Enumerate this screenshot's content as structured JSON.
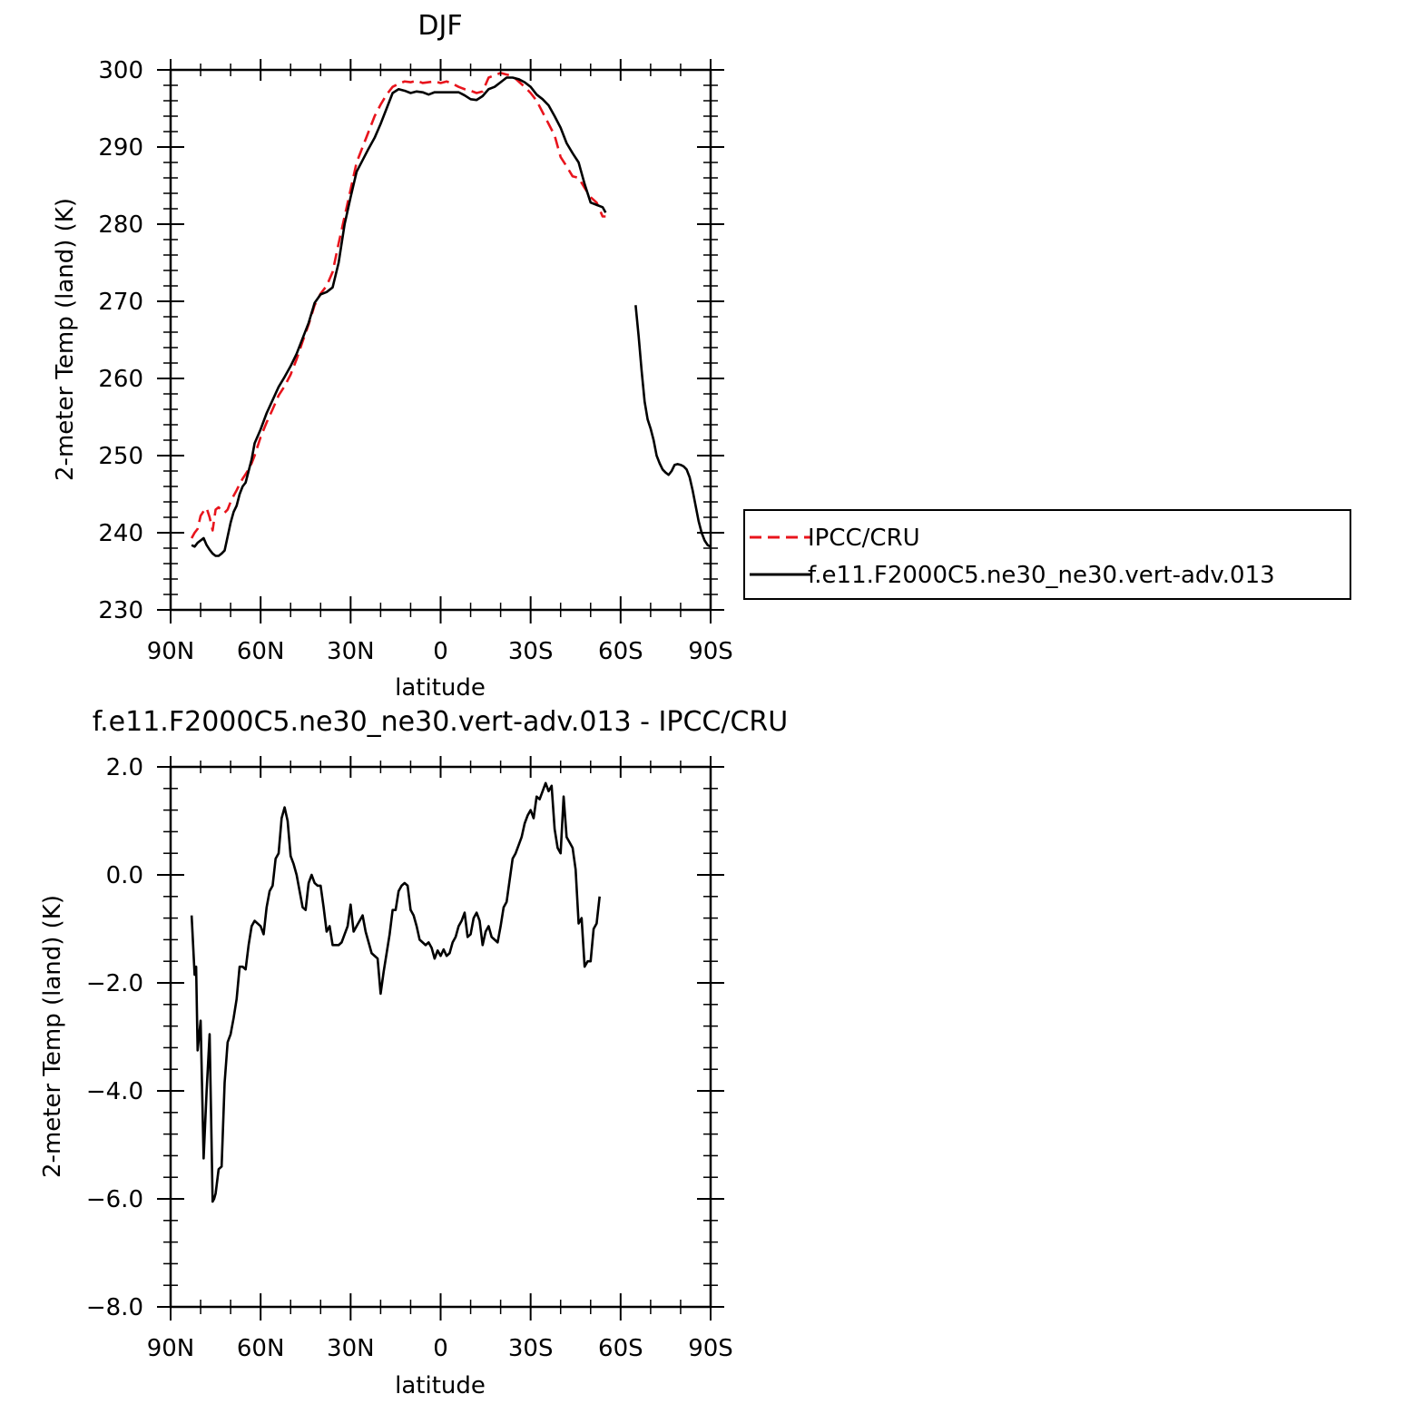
{
  "chart_data": [
    {
      "type": "line",
      "title": "DJF",
      "xlabel": "latitude",
      "ylabel": "2-meter Temp (land) (K)",
      "xticks": [
        "90N",
        "60N",
        "30N",
        "0",
        "30S",
        "60S",
        "90S"
      ],
      "xlim": [
        -90,
        90
      ],
      "yticks": [
        "230",
        "240",
        "250",
        "260",
        "270",
        "280",
        "290",
        "300"
      ],
      "ylim": [
        230,
        300
      ],
      "grid": false,
      "legend": {
        "placement": "right",
        "entries": [
          "IPCC/CRU",
          "f.e11.F2000C5.ne30_ne30.vert-adv.013"
        ]
      },
      "series": [
        {
          "name": "IPCC/CRU",
          "style": "dashed",
          "color": "#e8141c",
          "x": [
            -83,
            -82,
            -81,
            -80,
            -79,
            -78,
            -77,
            -76,
            -75,
            -74,
            -73,
            -72,
            -71,
            -70,
            -69,
            -68,
            -67,
            -66,
            -65,
            -64,
            -63,
            -62,
            -60,
            -58,
            -56,
            -54,
            -52,
            -50,
            -48,
            -46,
            -44,
            -42,
            -40,
            -38,
            -36,
            -34,
            -32,
            -30,
            -28,
            -26,
            -24,
            -22,
            -20,
            -18,
            -16,
            -14,
            -12,
            -10,
            -8,
            -6,
            -4,
            -2,
            0,
            2,
            4,
            6,
            8,
            10,
            12,
            14,
            16,
            18,
            20,
            22,
            24,
            26,
            28,
            30,
            32,
            34,
            36,
            38,
            40,
            42,
            44,
            46,
            48,
            50,
            52,
            54,
            55
          ],
          "y": [
            239.3,
            240.0,
            240.5,
            242.2,
            242.8,
            243.2,
            242.0,
            240.3,
            243.0,
            243.3,
            242.8,
            242.6,
            243.0,
            244.0,
            244.8,
            245.5,
            246.3,
            247.0,
            247.6,
            248.2,
            249.0,
            250.0,
            252.4,
            254.3,
            256.0,
            257.8,
            259.0,
            260.5,
            262.5,
            264.8,
            267.0,
            269.5,
            271.0,
            272.0,
            273.8,
            277.5,
            281.0,
            284.5,
            288.0,
            290.0,
            292.0,
            294.0,
            295.5,
            296.8,
            297.8,
            298.2,
            298.5,
            298.4,
            298.6,
            298.3,
            298.4,
            298.5,
            298.3,
            298.5,
            298.2,
            297.8,
            297.5,
            297.3,
            297.0,
            297.2,
            299.0,
            299.3,
            299.6,
            299.4,
            299.2,
            298.5,
            297.8,
            297.0,
            296.0,
            294.5,
            293.0,
            291.5,
            288.7,
            287.5,
            286.2,
            286.0,
            284.7,
            283.5,
            282.8,
            281.0,
            281.0
          ]
        },
        {
          "name": "f.e11.F2000C5.ne30_ne30.vert-adv.013",
          "style": "solid",
          "color": "#000000",
          "segments": [
            {
              "x": [
                -83,
                -82,
                -81,
                -80,
                -79,
                -78,
                -77,
                -76,
                -75,
                -74,
                -73,
                -72,
                -71,
                -70,
                -69,
                -68,
                -67,
                -66,
                -65,
                -64,
                -63,
                -62,
                -60,
                -58,
                -56,
                -54,
                -52,
                -50,
                -48,
                -46,
                -44,
                -42,
                -40,
                -38,
                -36,
                -34,
                -32,
                -30,
                -28,
                -26,
                -24,
                -22,
                -20,
                -18,
                -16,
                -14,
                -12,
                -10,
                -8,
                -6,
                -4,
                -2,
                0,
                2,
                4,
                6,
                8,
                10,
                12,
                14,
                16,
                18,
                20,
                22,
                24,
                26,
                28,
                30,
                32,
                34,
                36,
                38,
                40,
                42,
                44,
                46,
                48,
                50,
                52,
                54,
                55
              ],
              "y": [
                238.4,
                238.2,
                238.7,
                239.0,
                239.3,
                238.4,
                237.8,
                237.3,
                237.0,
                237.0,
                237.3,
                237.7,
                239.5,
                241.3,
                242.7,
                243.5,
                245.0,
                246.0,
                246.5,
                248.0,
                249.5,
                251.6,
                253.4,
                255.5,
                257.2,
                258.9,
                260.2,
                261.6,
                263.2,
                265.2,
                267.2,
                269.8,
                270.9,
                271.2,
                271.8,
                275.0,
                280.0,
                283.5,
                286.8,
                288.3,
                289.8,
                291.2,
                293.0,
                295.0,
                297.0,
                297.5,
                297.3,
                297.0,
                297.2,
                297.1,
                296.8,
                297.1,
                297.1,
                297.1,
                297.1,
                297.1,
                296.7,
                296.2,
                296.1,
                296.6,
                297.5,
                297.8,
                298.4,
                299.0,
                299.0,
                298.8,
                298.4,
                297.8,
                296.8,
                296.2,
                295.4,
                294.0,
                292.5,
                290.5,
                289.2,
                288.0,
                285.2,
                282.8,
                282.5,
                282.2,
                281.5
              ]
            },
            {
              "x": [
                65,
                66,
                67,
                68,
                69,
                70,
                71,
                72,
                73,
                74,
                75,
                76,
                77,
                78,
                79,
                80,
                81,
                82,
                83,
                84,
                85,
                86,
                87,
                88,
                89,
                90
              ],
              "y": [
                269.5,
                265.5,
                261.0,
                257.0,
                254.7,
                253.5,
                252.0,
                250.0,
                249.0,
                248.2,
                247.8,
                247.5,
                248.0,
                248.8,
                248.9,
                248.8,
                248.6,
                248.2,
                247.2,
                245.5,
                243.5,
                241.5,
                240.0,
                239.0,
                238.4,
                238.2
              ]
            }
          ]
        }
      ]
    },
    {
      "type": "line",
      "title": "f.e11.F2000C5.ne30_ne30.vert-adv.013 - IPCC/CRU",
      "xlabel": "latitude",
      "ylabel": "2-meter Temp (land) (K)",
      "xticks": [
        "90N",
        "60N",
        "30N",
        "0",
        "30S",
        "60S",
        "90S"
      ],
      "xlim": [
        -90,
        90
      ],
      "yticks": [
        "2.0",
        "0.0",
        "-2.0",
        "-4.0",
        "-6.0",
        "-8.0"
      ],
      "ylim": [
        -8,
        2
      ],
      "grid": false,
      "series": [
        {
          "style": "solid",
          "color": "#000000",
          "x": [
            -83,
            -82,
            -81.5,
            -81,
            -80,
            -79,
            -78,
            -77,
            -76,
            -75.5,
            -75,
            -74,
            -73,
            -72,
            -71,
            -70,
            -69,
            -68,
            -67,
            -66,
            -65,
            -64,
            -63,
            -62,
            -61,
            -60,
            -59,
            -58,
            -57,
            -56,
            -55,
            -54,
            -53,
            -52,
            -51,
            -50,
            -49,
            -48,
            -47,
            -46,
            -45,
            -44,
            -43,
            -42,
            -41,
            -40,
            -39,
            -38,
            -37,
            -36,
            -35,
            -34,
            -33,
            -32,
            -31,
            -30,
            -29,
            -28,
            -27,
            -26,
            -25,
            -24,
            -23,
            -22,
            -21,
            -20,
            -19,
            -18,
            -17,
            -16,
            -15,
            -14,
            -13,
            -12,
            -11,
            -10,
            -9,
            -8,
            -7,
            -6,
            -5,
            -4,
            -3,
            -2,
            -1,
            0,
            1,
            2,
            3,
            4,
            5,
            6,
            7,
            8,
            9,
            10,
            11,
            12,
            13,
            14,
            15,
            16,
            17,
            18,
            19,
            20,
            21,
            22,
            23,
            24,
            25,
            26,
            27,
            28,
            29,
            30,
            31,
            32,
            33,
            34,
            35,
            36,
            37,
            38,
            39,
            40,
            41,
            42,
            43,
            44,
            45,
            46,
            47,
            48,
            49,
            50,
            51,
            52,
            53
          ],
          "y": [
            -0.75,
            -1.85,
            -1.7,
            -3.25,
            -2.7,
            -5.25,
            -4.0,
            -2.95,
            -6.05,
            -6.0,
            -5.9,
            -5.45,
            -5.4,
            -3.85,
            -3.1,
            -2.95,
            -2.65,
            -2.3,
            -1.7,
            -1.7,
            -1.75,
            -1.3,
            -0.95,
            -0.85,
            -0.9,
            -0.95,
            -1.1,
            -0.6,
            -0.3,
            -0.2,
            0.3,
            0.4,
            1.05,
            1.25,
            1.0,
            0.35,
            0.2,
            0.0,
            -0.3,
            -0.6,
            -0.65,
            -0.15,
            0.0,
            -0.15,
            -0.2,
            -0.2,
            -0.6,
            -1.05,
            -0.95,
            -1.3,
            -1.3,
            -1.3,
            -1.25,
            -1.1,
            -0.95,
            -0.55,
            -1.05,
            -0.95,
            -0.85,
            -0.75,
            -1.05,
            -1.25,
            -1.45,
            -1.5,
            -1.55,
            -2.2,
            -1.8,
            -1.45,
            -1.1,
            -0.65,
            -0.65,
            -0.3,
            -0.2,
            -0.15,
            -0.2,
            -0.65,
            -0.75,
            -0.95,
            -1.2,
            -1.25,
            -1.3,
            -1.25,
            -1.35,
            -1.55,
            -1.4,
            -1.5,
            -1.38,
            -1.5,
            -1.45,
            -1.25,
            -1.15,
            -0.95,
            -0.85,
            -0.7,
            -1.15,
            -1.1,
            -0.8,
            -0.7,
            -0.85,
            -1.3,
            -1.05,
            -0.95,
            -1.15,
            -1.2,
            -1.25,
            -0.95,
            -0.6,
            -0.5,
            -0.1,
            0.3,
            0.4,
            0.55,
            0.7,
            0.95,
            1.1,
            1.2,
            1.05,
            1.45,
            1.4,
            1.55,
            1.7,
            1.55,
            1.65,
            0.85,
            0.5,
            0.4,
            1.45,
            0.7,
            0.6,
            0.5,
            0.1,
            -0.9,
            -0.8,
            -1.7,
            -1.6,
            -1.6,
            -1.0,
            -0.9,
            -0.4
          ]
        }
      ]
    }
  ]
}
